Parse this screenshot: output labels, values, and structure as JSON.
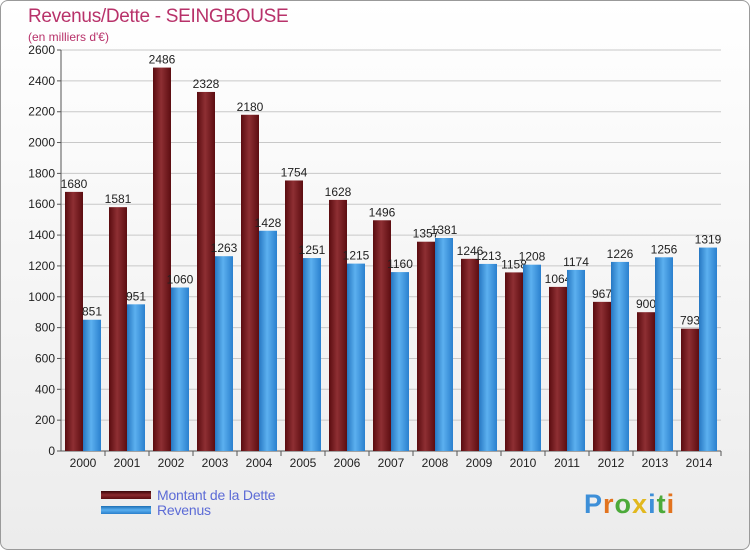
{
  "title": "Revenus/Dette - SEINGBOUSE",
  "subtitle": "(en milliers d'€)",
  "logo_text": "Proxiti",
  "colors": {
    "dette": "#7a1a1e",
    "revenus": "#3d97dd",
    "title": "#b8326a",
    "legend_text": "#5c6bd6"
  },
  "chart_data": {
    "type": "bar",
    "categories": [
      "2000",
      "2001",
      "2002",
      "2003",
      "2004",
      "2005",
      "2006",
      "2007",
      "2008",
      "2009",
      "2010",
      "2011",
      "2012",
      "2013",
      "2014"
    ],
    "series": [
      {
        "name": "Montant de la Dette",
        "values": [
          1680,
          1581,
          2486,
          2328,
          2180,
          1754,
          1628,
          1496,
          1357,
          1246,
          1158,
          1064,
          967,
          900,
          793
        ]
      },
      {
        "name": "Revenus",
        "values": [
          851,
          951,
          1060,
          1263,
          1428,
          1251,
          1215,
          1160,
          1381,
          1213,
          1208,
          1174,
          1226,
          1256,
          1319
        ]
      }
    ],
    "ylim": [
      0,
      2600
    ],
    "yticks": [
      0,
      200,
      400,
      600,
      800,
      1000,
      1200,
      1400,
      1600,
      1800,
      2000,
      2200,
      2400,
      2600
    ],
    "grid": true,
    "legend": "bottom-left"
  }
}
